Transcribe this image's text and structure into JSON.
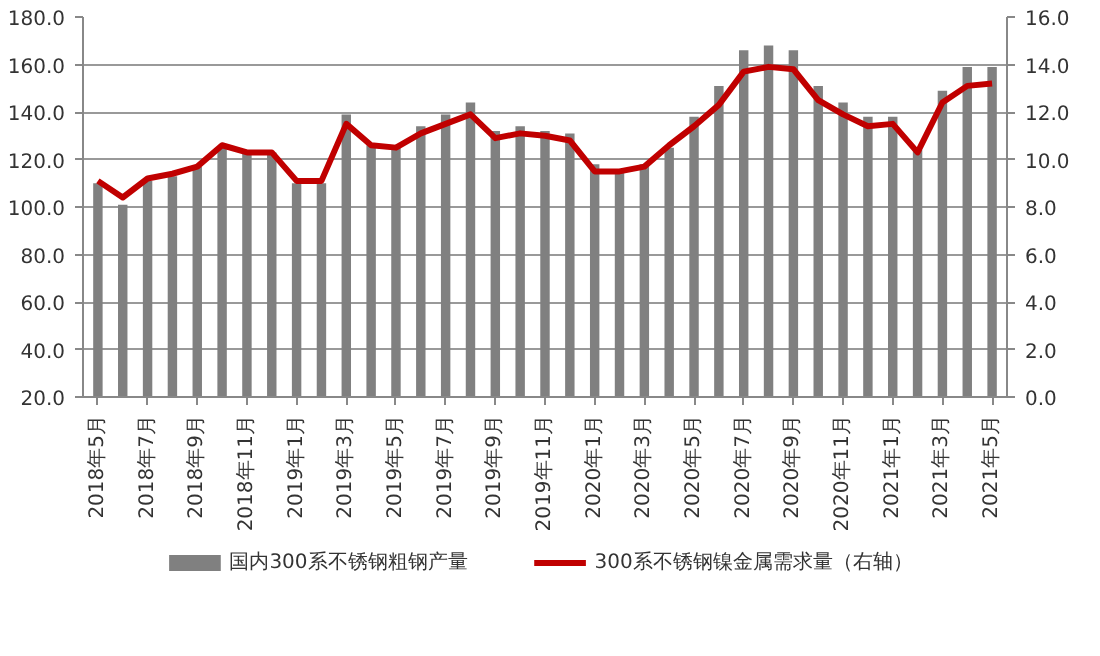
{
  "chart_data": {
    "type": "bar",
    "categories": [
      "2018年5月",
      null,
      "2018年7月",
      null,
      "2018年9月",
      null,
      "2018年11月",
      null,
      "2019年1月",
      null,
      "2019年3月",
      null,
      "2019年5月",
      null,
      "2019年7月",
      null,
      "2019年9月",
      null,
      "2019年11月",
      null,
      "2020年1月",
      null,
      "2020年3月",
      null,
      "2020年5月",
      null,
      "2020年7月",
      null,
      "2020年9月",
      null,
      "2020年11月",
      null,
      "2021年1月",
      null,
      "2021年3月",
      null,
      "2021年5月"
    ],
    "series": [
      {
        "name": "国内300系不锈钢粗钢产量",
        "color": "#808080",
        "values": [
          110,
          101,
          111,
          113,
          117,
          125,
          123,
          123,
          110,
          110,
          139,
          126,
          125,
          134,
          139,
          144,
          132,
          134,
          132,
          131,
          118,
          116,
          118,
          125,
          138,
          151,
          166,
          168,
          166,
          151,
          144,
          138,
          138,
          124,
          149,
          159,
          159
        ]
      },
      {
        "name": "300系不锈钢镍金属需求量（右轴）",
        "type": "line",
        "axis": "y2",
        "color": "#c00000",
        "values": [
          9.1,
          8.4,
          9.2,
          9.4,
          9.7,
          10.6,
          10.3,
          10.3,
          9.1,
          9.1,
          11.5,
          10.6,
          10.5,
          11.1,
          11.5,
          11.9,
          10.9,
          11.1,
          11.0,
          10.8,
          9.5,
          9.5,
          9.7,
          10.6,
          11.4,
          12.3,
          13.7,
          13.9,
          13.8,
          12.5,
          11.9,
          11.4,
          11.5,
          10.3,
          12.4,
          13.1,
          13.2
        ]
      }
    ],
    "ylim": [
      20,
      180
    ],
    "yticks": [
      {
        "value": 20,
        "label": "20.0"
      },
      {
        "value": 40,
        "label": "40.0"
      },
      {
        "value": 60,
        "label": "60.0"
      },
      {
        "value": 80,
        "label": "80.0"
      },
      {
        "value": 100,
        "label": "100.0"
      },
      {
        "value": 120,
        "label": "120.0"
      },
      {
        "value": 140,
        "label": "140.0"
      },
      {
        "value": 160,
        "label": "160.0"
      },
      {
        "value": 180,
        "label": "180.0"
      }
    ],
    "y2lim": [
      0,
      16
    ],
    "y2ticks": [
      {
        "value": 0,
        "label": "0.0"
      },
      {
        "value": 2,
        "label": "2.0"
      },
      {
        "value": 4,
        "label": "4.0"
      },
      {
        "value": 6,
        "label": "6.0"
      },
      {
        "value": 8,
        "label": "8.0"
      },
      {
        "value": 10,
        "label": "10.0"
      },
      {
        "value": 12,
        "label": "12.0"
      },
      {
        "value": 14,
        "label": "14.0"
      },
      {
        "value": 16,
        "label": "16.0"
      }
    ],
    "grid": "y",
    "legend": "bottom",
    "marker": "none",
    "line_style": "solid"
  }
}
